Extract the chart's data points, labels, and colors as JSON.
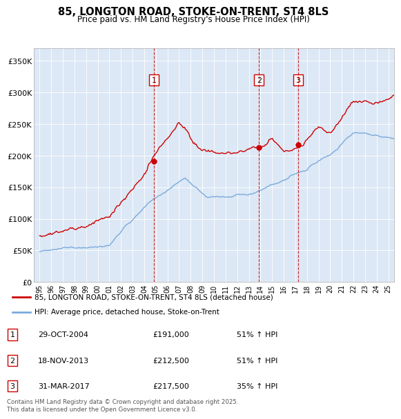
{
  "title": "85, LONGTON ROAD, STOKE-ON-TRENT, ST4 8LS",
  "subtitle": "Price paid vs. HM Land Registry's House Price Index (HPI)",
  "bg_color": "#dce8f5",
  "line_color_red": "#cc0000",
  "line_color_blue": "#7aaadd",
  "transactions": [
    {
      "label": "1",
      "date_num": 2004.83,
      "price": 191000,
      "pct": "51%",
      "date_str": "29-OCT-2004"
    },
    {
      "label": "2",
      "date_num": 2013.88,
      "price": 212500,
      "pct": "51%",
      "date_str": "18-NOV-2013"
    },
    {
      "label": "3",
      "date_num": 2017.25,
      "price": 217500,
      "pct": "35%",
      "date_str": "31-MAR-2017"
    }
  ],
  "ylabel_vals": [
    0,
    50000,
    100000,
    150000,
    200000,
    250000,
    300000,
    350000
  ],
  "ylabel_strs": [
    "£0",
    "£50K",
    "£100K",
    "£150K",
    "£200K",
    "£250K",
    "£300K",
    "£350K"
  ],
  "xlim": [
    1994.5,
    2025.5
  ],
  "ylim": [
    0,
    370000
  ],
  "xticks": [
    1995,
    1996,
    1997,
    1998,
    1999,
    2000,
    2001,
    2002,
    2003,
    2004,
    2005,
    2006,
    2007,
    2008,
    2009,
    2010,
    2011,
    2012,
    2013,
    2014,
    2015,
    2016,
    2017,
    2018,
    2019,
    2020,
    2021,
    2022,
    2023,
    2024,
    2025
  ],
  "legend_red": "85, LONGTON ROAD, STOKE-ON-TRENT, ST4 8LS (detached house)",
  "legend_blue": "HPI: Average price, detached house, Stoke-on-Trent",
  "footer": "Contains HM Land Registry data © Crown copyright and database right 2025.\nThis data is licensed under the Open Government Licence v3.0."
}
